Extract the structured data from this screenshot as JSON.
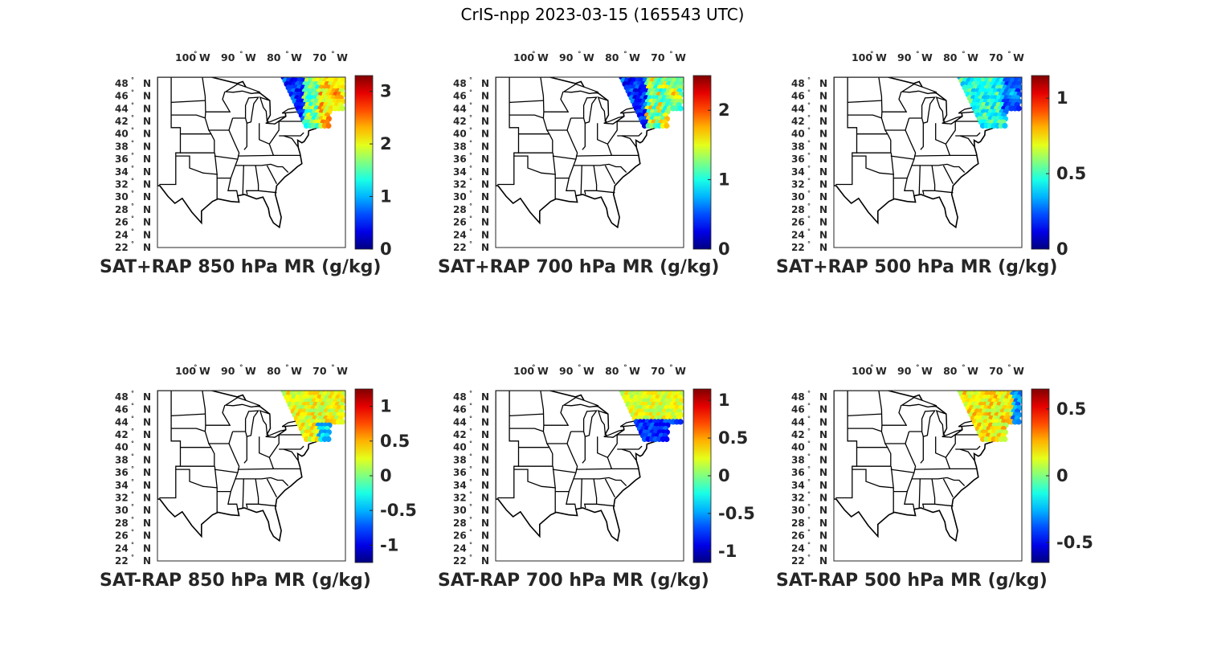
{
  "figure": {
    "title": "CrIS-npp 2023-03-15 (165543 UTC)"
  },
  "map": {
    "lon_ticks": [
      {
        "num": "100",
        "dir": "W"
      },
      {
        "num": "90",
        "dir": "W"
      },
      {
        "num": "80",
        "dir": "W"
      },
      {
        "num": "70",
        "dir": "W"
      }
    ],
    "lat_ticks": [
      {
        "num": "48",
        "dir": "N"
      },
      {
        "num": "46",
        "dir": "N"
      },
      {
        "num": "44",
        "dir": "N"
      },
      {
        "num": "42",
        "dir": "N"
      },
      {
        "num": "40",
        "dir": "N"
      },
      {
        "num": "38",
        "dir": "N"
      },
      {
        "num": "36",
        "dir": "N"
      },
      {
        "num": "34",
        "dir": "N"
      },
      {
        "num": "32",
        "dir": "N"
      },
      {
        "num": "30",
        "dir": "N"
      },
      {
        "num": "28",
        "dir": "N"
      },
      {
        "num": "26",
        "dir": "N"
      },
      {
        "num": "24",
        "dir": "N"
      },
      {
        "num": "22",
        "dir": "N"
      }
    ],
    "colormap": "jet",
    "state_border_color": "#000000"
  },
  "panels": [
    {
      "id": "p1",
      "title": "SAT+RAP 850 hPa MR (g/kg)",
      "cmin": 0,
      "cmax": 3.3,
      "cbar_ticks": [
        {
          "v": 0,
          "t": "0"
        },
        {
          "v": 1,
          "t": "1"
        },
        {
          "v": 2,
          "t": "2"
        },
        {
          "v": 3,
          "t": "3"
        }
      ],
      "swath": "plus850"
    },
    {
      "id": "p2",
      "title": "SAT+RAP 700 hPa MR (g/kg)",
      "cmin": 0,
      "cmax": 2.5,
      "cbar_ticks": [
        {
          "v": 0,
          "t": "0"
        },
        {
          "v": 1,
          "t": "1"
        },
        {
          "v": 2,
          "t": "2"
        }
      ],
      "swath": "plus700"
    },
    {
      "id": "p3",
      "title": "SAT+RAP 500 hPa MR (g/kg)",
      "cmin": 0,
      "cmax": 1.15,
      "cbar_ticks": [
        {
          "v": 0,
          "t": "0"
        },
        {
          "v": 0.5,
          "t": "0.5"
        },
        {
          "v": 1,
          "t": "1"
        }
      ],
      "swath": "plus500"
    },
    {
      "id": "p4",
      "title": "SAT-RAP 850 hPa MR (g/kg)",
      "cmin": -1.25,
      "cmax": 1.25,
      "cbar_ticks": [
        {
          "v": -1,
          "t": "-1"
        },
        {
          "v": -0.5,
          "t": "-0.5"
        },
        {
          "v": 0,
          "t": "0"
        },
        {
          "v": 0.5,
          "t": "0.5"
        },
        {
          "v": 1,
          "t": "1"
        }
      ],
      "swath": "minus850"
    },
    {
      "id": "p5",
      "title": "SAT-RAP 700 hPa MR (g/kg)",
      "cmin": -1.15,
      "cmax": 1.15,
      "cbar_ticks": [
        {
          "v": -1,
          "t": "-1"
        },
        {
          "v": -0.5,
          "t": "-0.5"
        },
        {
          "v": 0,
          "t": "0"
        },
        {
          "v": 0.5,
          "t": "0.5"
        },
        {
          "v": 1,
          "t": "1"
        }
      ],
      "swath": "minus700"
    },
    {
      "id": "p6",
      "title": "SAT-RAP 500 hPa MR (g/kg)",
      "cmin": -0.65,
      "cmax": 0.65,
      "cbar_ticks": [
        {
          "v": -0.5,
          "t": "-0.5"
        },
        {
          "v": 0,
          "t": "0"
        },
        {
          "v": 0.5,
          "t": "0.5"
        }
      ],
      "swath": "minus500"
    }
  ]
}
